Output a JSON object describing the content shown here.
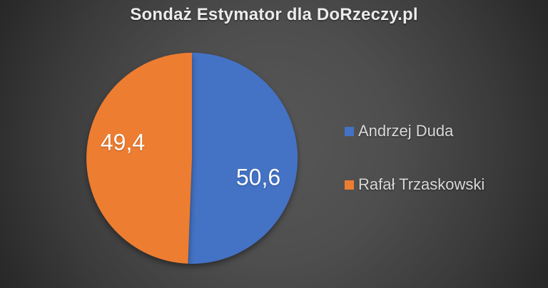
{
  "chart_data": {
    "type": "pie",
    "title": "Sondaż Estymator dla DoRzeczy.pl",
    "start_angle_deg": 0,
    "direction": "clockwise",
    "legend_position": "right",
    "slices": [
      {
        "name": "Andrzej Duda",
        "value": 50.6,
        "label": "50,6",
        "color": "#4472C4"
      },
      {
        "name": "Rafał Trzaskowski",
        "value": 49.4,
        "label": "49,4",
        "color": "#ED7D31"
      }
    ]
  },
  "colors": {
    "slice_blue": "#4472C4",
    "slice_orange": "#ED7D31",
    "data_label_text": "#FFFFFF",
    "legend_text": "#D9D9D9",
    "title_text": "#ECECEC"
  }
}
